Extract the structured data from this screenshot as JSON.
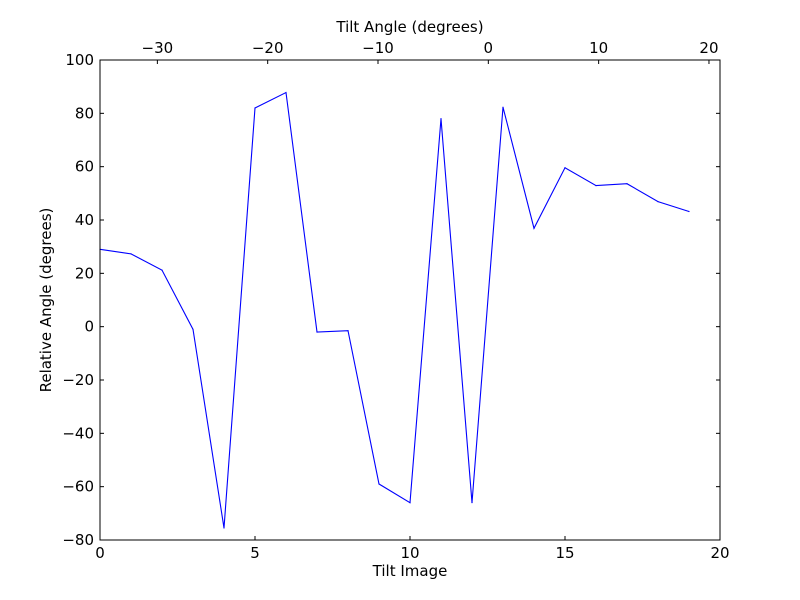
{
  "chart_data": {
    "type": "line",
    "title": "",
    "xlabel": "Tilt Image",
    "ylabel": "Relative Angle (degrees)",
    "top_xlabel": "Tilt Angle (degrees)",
    "xlim": [
      0,
      20
    ],
    "ylim": [
      -80,
      100
    ],
    "top_xlim": [
      -35.2,
      21.0
    ],
    "x_ticks": [
      0,
      5,
      10,
      15,
      20
    ],
    "x_tick_labels": [
      "0",
      "5",
      "10",
      "15",
      "20"
    ],
    "y_ticks": [
      -80,
      -60,
      -40,
      -20,
      0,
      20,
      40,
      60,
      80,
      100
    ],
    "y_tick_labels": [
      "−80",
      "−60",
      "−40",
      "−20",
      "0",
      "20",
      "40",
      "60",
      "80",
      "100"
    ],
    "top_x_ticks": [
      -30,
      -20,
      -10,
      0,
      10,
      20
    ],
    "top_x_tick_labels": [
      "−30",
      "−20",
      "−10",
      "0",
      "10",
      "20"
    ],
    "grid": false,
    "legend": "none",
    "series": [
      {
        "color": "#0000ff",
        "x": [
          0,
          1,
          2,
          3,
          4,
          5,
          6,
          7,
          8,
          9,
          10,
          11,
          12,
          13,
          14,
          15,
          16,
          17,
          18,
          19
        ],
        "y": [
          29,
          27.3,
          21.2,
          -1,
          -75.5,
          82,
          87.8,
          -2,
          -1.5,
          -59,
          -66,
          78,
          -66,
          82.3,
          36.9,
          59.6,
          52.9,
          53.6,
          46.9,
          43.2
        ]
      }
    ]
  }
}
